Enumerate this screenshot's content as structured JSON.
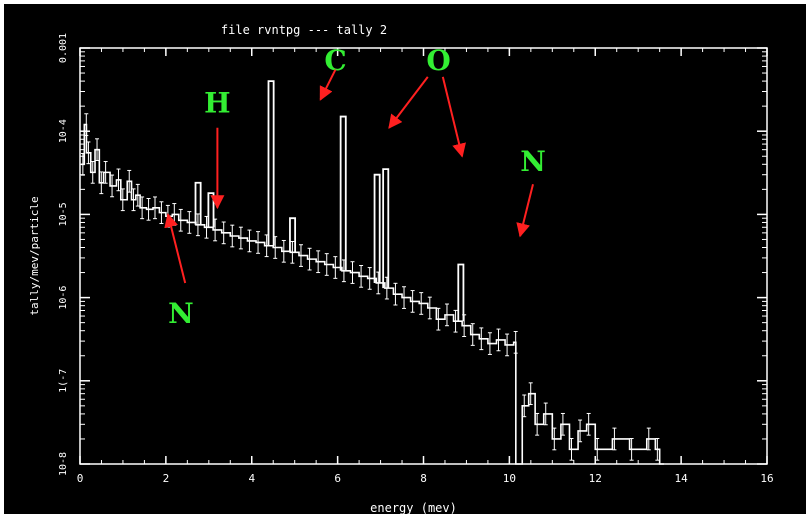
{
  "title": "file rvntpg  --- tally   2",
  "chart_data": {
    "type": "line",
    "title": "file rvntpg  --- tally   2",
    "xlabel": "energy (mev)",
    "ylabel": "tally/mev/particle",
    "xlim": [
      0,
      16
    ],
    "ylim": [
      1e-08,
      0.001
    ],
    "yscale": "log",
    "x_ticks": [
      "0",
      "2",
      "4",
      "6",
      "8",
      "10",
      "12",
      "14",
      "16"
    ],
    "y_ticks": [
      "10-8",
      "1(-7",
      "10-6",
      "10-5",
      "10-4",
      "0.001"
    ],
    "continuum": [
      [
        0.02,
        4e-05
      ],
      [
        0.1,
        0.00012
      ],
      [
        0.15,
        5.5e-05
      ],
      [
        0.25,
        3.2e-05
      ],
      [
        0.35,
        6e-05
      ],
      [
        0.45,
        2.4e-05
      ],
      [
        0.55,
        3.2e-05
      ],
      [
        0.7,
        2.2e-05
      ],
      [
        0.85,
        2.6e-05
      ],
      [
        0.95,
        1.5e-05
      ],
      [
        1.1,
        2.5e-05
      ],
      [
        1.2,
        1.5e-05
      ],
      [
        1.3,
        1.7e-05
      ],
      [
        1.4,
        1.2e-05
      ],
      [
        1.55,
        1.15e-05
      ],
      [
        1.7,
        1.2e-05
      ],
      [
        1.85,
        1.05e-05
      ],
      [
        2.0,
        9.5e-06
      ],
      [
        2.15,
        1e-05
      ],
      [
        2.3,
        8.5e-06
      ],
      [
        2.5,
        8e-06
      ],
      [
        2.7,
        7.5e-06
      ],
      [
        2.9,
        7e-06
      ],
      [
        3.1,
        6.5e-06
      ],
      [
        3.3,
        6e-06
      ],
      [
        3.5,
        5.5e-06
      ],
      [
        3.7,
        5.2e-06
      ],
      [
        3.9,
        4.8e-06
      ],
      [
        4.1,
        4.6e-06
      ],
      [
        4.3,
        4.2e-06
      ],
      [
        4.5,
        4e-06
      ],
      [
        4.7,
        3.6e-06
      ],
      [
        4.9,
        3.5e-06
      ],
      [
        5.1,
        3.2e-06
      ],
      [
        5.3,
        2.9e-06
      ],
      [
        5.5,
        2.7e-06
      ],
      [
        5.7,
        2.5e-06
      ],
      [
        5.9,
        2.3e-06
      ],
      [
        6.1,
        2.1e-06
      ],
      [
        6.3,
        2e-06
      ],
      [
        6.5,
        1.8e-06
      ],
      [
        6.7,
        1.7e-06
      ],
      [
        6.9,
        1.5e-06
      ],
      [
        7.1,
        1.3e-06
      ],
      [
        7.3,
        1.1e-06
      ],
      [
        7.5,
        1e-06
      ],
      [
        7.7,
        9e-07
      ],
      [
        7.9,
        8.5e-07
      ],
      [
        8.1,
        7.5e-07
      ],
      [
        8.3,
        5.5e-07
      ],
      [
        8.5,
        6.2e-07
      ],
      [
        8.7,
        5.2e-07
      ],
      [
        8.9,
        4.6e-07
      ],
      [
        9.1,
        3.6e-07
      ],
      [
        9.3,
        3.2e-07
      ],
      [
        9.5,
        2.8e-07
      ],
      [
        9.7,
        3.1e-07
      ],
      [
        9.9,
        2.7e-07
      ],
      [
        10.1,
        2.9e-07
      ],
      [
        10.15,
        1e-08
      ],
      [
        10.3,
        5e-08
      ],
      [
        10.45,
        7e-08
      ],
      [
        10.6,
        3e-08
      ],
      [
        10.8,
        4e-08
      ],
      [
        11.0,
        2e-08
      ],
      [
        11.2,
        3e-08
      ],
      [
        11.4,
        1.5e-08
      ],
      [
        11.6,
        2.5e-08
      ],
      [
        11.8,
        3e-08
      ],
      [
        12.0,
        1.5e-08
      ],
      [
        12.4,
        2e-08
      ],
      [
        12.8,
        1.5e-08
      ],
      [
        13.2,
        2e-08
      ],
      [
        13.4,
        1.5e-08
      ],
      [
        13.5,
        1e-08
      ]
    ],
    "peaks": [
      {
        "x": 2.75,
        "y": 2.4e-05
      },
      {
        "x": 3.05,
        "y": 1.8e-05
      },
      {
        "x": 4.45,
        "y": 0.0004
      },
      {
        "x": 4.95,
        "y": 9e-06
      },
      {
        "x": 6.13,
        "y": 0.00015
      },
      {
        "x": 6.92,
        "y": 3e-05
      },
      {
        "x": 7.12,
        "y": 3.5e-05
      },
      {
        "x": 8.87,
        "y": 2.5e-06
      }
    ],
    "annotations": [
      {
        "label": "C",
        "color": "#33ee33",
        "arrows": [
          {
            "from": [
              5.95,
              0.00055
            ],
            "to": [
              5.6,
              0.00024
            ]
          }
        ]
      },
      {
        "label": "O",
        "color": "#33ee33",
        "arrows": [
          {
            "from": [
              8.1,
              0.00045
            ],
            "to": [
              7.2,
              0.00011
            ]
          },
          {
            "from": [
              8.45,
              0.00045
            ],
            "to": [
              8.9,
              5e-05
            ]
          }
        ]
      },
      {
        "label": "H",
        "color": "#33ee33",
        "arrows": [
          {
            "from": [
              3.2,
              0.00011
            ],
            "to": [
              3.2,
              1.2e-05
            ]
          }
        ]
      },
      {
        "label": "N",
        "color": "#33ee33",
        "arrows": [
          {
            "from": [
              10.55,
              2.3e-05
            ],
            "to": [
              10.25,
              5.5e-06
            ]
          }
        ]
      },
      {
        "label": "N",
        "color": "#33ee33",
        "arrows": [
          {
            "from": [
              2.45,
              1.5e-06
            ],
            "to": [
              2.05,
              1e-05
            ]
          }
        ]
      }
    ]
  }
}
